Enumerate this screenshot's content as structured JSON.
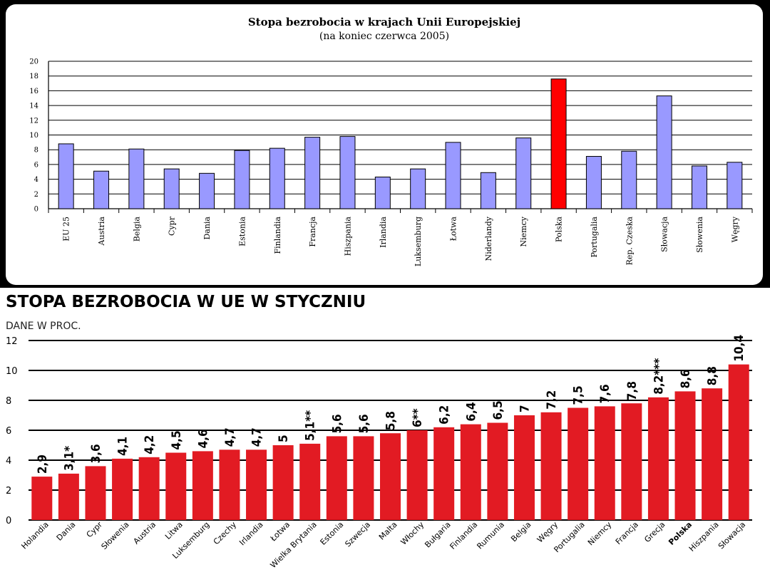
{
  "chart_data": [
    {
      "type": "bar",
      "title": "Stopa bezrobocia w krajach Unii Europejskiej",
      "subtitle": "(na koniec czerwca 2005)",
      "ylim": [
        0,
        20
      ],
      "yticks": [
        "0",
        "2",
        "4",
        "6",
        "8",
        "10",
        "12",
        "14",
        "16",
        "18",
        "20"
      ],
      "grid": true,
      "bar_color": "#9999ff",
      "highlight_color": "#ff0000",
      "highlight": [
        "Polska"
      ],
      "categories": [
        "EU 25",
        "Austria",
        "Belgia",
        "Cypr",
        "Dania",
        "Estonia",
        "Finlandia",
        "Francja",
        "Hiszpania",
        "Irlandia",
        "Luksemburg",
        "Łotwa",
        "Niderlandy",
        "Niemcy",
        "Polska",
        "Portugalia",
        "Rep. Czeska",
        "Słowacja",
        "Słowenia",
        "Węgry"
      ],
      "values": [
        8.8,
        5.1,
        8.1,
        5.4,
        4.8,
        7.9,
        8.2,
        9.7,
        9.8,
        4.3,
        5.4,
        9.0,
        4.9,
        9.6,
        17.6,
        7.1,
        7.8,
        15.3,
        5.8,
        6.3
      ]
    },
    {
      "type": "bar",
      "title": "STOPA BEZROBOCIA W UE W STYCZNIU",
      "subtitle": "DANE W PROC.",
      "ylim": [
        0,
        12
      ],
      "yticks": [
        "0",
        "2",
        "4",
        "6",
        "8",
        "10",
        "12"
      ],
      "grid": true,
      "bar_color": "#e21b23",
      "bold_categories": [
        "Polska"
      ],
      "categories": [
        "Holandia",
        "Dania",
        "Cypr",
        "Słowenia",
        "Austria",
        "Litwa",
        "Luksemburg",
        "Czechy",
        "Irlandia",
        "Łotwa",
        "Wielka Brytania",
        "Estonia",
        "Szwecja",
        "Malta",
        "Włochy",
        "Bułgaria",
        "Finlandia",
        "Rumunia",
        "Belgia",
        "Węgry",
        "Portugalia",
        "Niemcy",
        "Francja",
        "Grecja",
        "Polska",
        "Hiszpania",
        "Słowacja"
      ],
      "values": [
        2.9,
        3.1,
        3.6,
        4.1,
        4.2,
        4.5,
        4.6,
        4.7,
        4.7,
        5.0,
        5.1,
        5.6,
        5.6,
        5.8,
        6.0,
        6.2,
        6.4,
        6.5,
        7.0,
        7.2,
        7.5,
        7.6,
        7.8,
        8.2,
        8.6,
        8.8,
        10.4
      ],
      "value_labels": [
        "2,9",
        "3,1*",
        "3,6",
        "4,1",
        "4,2",
        "4,5",
        "4,6",
        "4,7",
        "4,7",
        "5",
        "5,1**",
        "5,6",
        "5,6",
        "5,8",
        "6**",
        "6,2",
        "6,4",
        "6,5",
        "7",
        "7,2",
        "7,5",
        "7,6",
        "7,8",
        "8,2***",
        "8,6",
        "8,8",
        "10,4"
      ]
    }
  ]
}
